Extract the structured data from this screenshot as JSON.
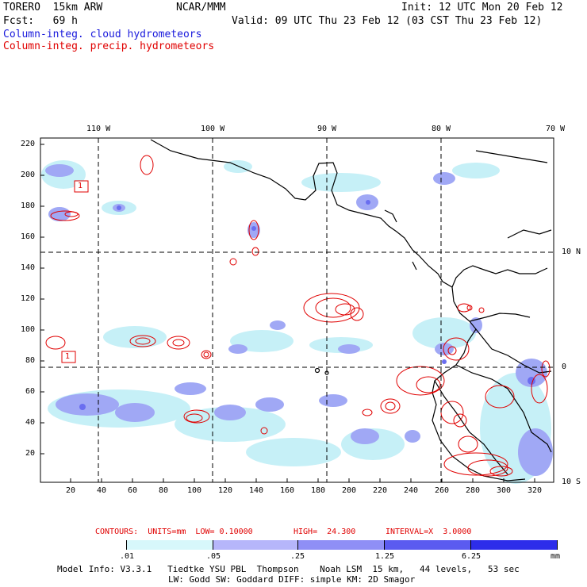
{
  "header": {
    "model": "TORERO  15km ARW",
    "center": "NCAR/MMM",
    "init": "Init: 12 UTC Mon 20 Feb 12",
    "fcst": "Fcst:   69 h",
    "valid": "Valid: 09 UTC Thu 23 Feb 12 (03 CST Thu 23 Feb 12)",
    "field1": "Column-integ. cloud hydrometeors",
    "field2": "Column-integ. precip. hydrometeors"
  },
  "map": {
    "top_labels": [
      "110 W",
      "100 W",
      "90 W",
      "80 W",
      "70 W"
    ],
    "right_labels": [
      "10 N",
      "0",
      "10 S"
    ],
    "y_ticks": [
      "220",
      "200",
      "180",
      "160",
      "140",
      "120",
      "100",
      "80",
      "60",
      "40",
      "20"
    ],
    "x_ticks": [
      "20",
      "40",
      "60",
      "80",
      "100",
      "120",
      "140",
      "160",
      "180",
      "200",
      "220",
      "240",
      "260",
      "280",
      "300",
      "320"
    ],
    "contour_labels": [
      "1",
      "1"
    ],
    "colors": {
      "land": "#000000",
      "cloud_light": "#c6f0f7",
      "cloud_mid": "#a0a8f5",
      "cloud_dark": "#6a6ef0",
      "precip": "#e00000"
    }
  },
  "contours": {
    "units": "CONTOURS:  UNITS=mm  LOW= 0.10000",
    "high": "HIGH=  24.300",
    "interval": "INTERVAL=X  3.0000"
  },
  "colorbar": {
    "labels": [
      ".01",
      ".05",
      ".25",
      "1.25",
      "6.25"
    ],
    "units": "mm",
    "colors": [
      "#ffffff",
      "#d7f7fb",
      "#b6b6fa",
      "#8f8ff6",
      "#5b5bf0",
      "#2d2dea"
    ]
  },
  "footer": {
    "line1": "Model Info: V3.3.1   Tiedtke YSU PBL  Thompson    Noah LSM  15 km,   44 levels,   53 sec",
    "line2": "LW: Godd SW: Goddard DIFF: simple KM: 2D Smagor"
  }
}
